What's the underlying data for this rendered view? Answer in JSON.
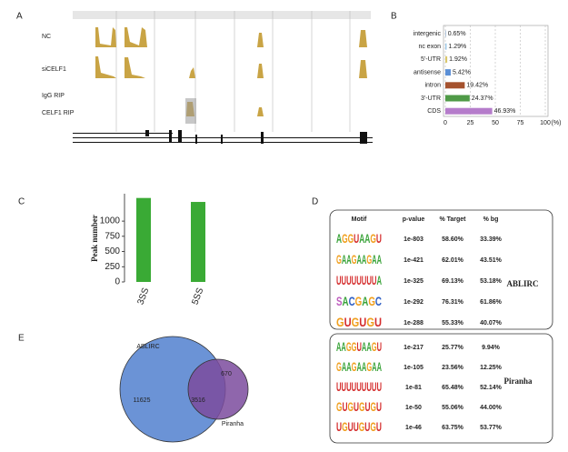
{
  "chart_data": [
    {
      "type": "bar",
      "panel": "B",
      "orientation": "horizontal",
      "categories": [
        "intergenic",
        "nc exon",
        "5'-UTR",
        "antisense",
        "intron",
        "3'-UTR",
        "CDS"
      ],
      "values": [
        0.65,
        1.29,
        1.92,
        5.42,
        19.42,
        24.37,
        46.93
      ],
      "value_labels": [
        "0.65%",
        "1.29%",
        "1.92%",
        "5.42%",
        "19.42%",
        "24.37%",
        "46.93%"
      ],
      "colors": [
        "#8fa9c8",
        "#9cc7e6",
        "#d9c66a",
        "#5b8fd6",
        "#a5522e",
        "#4f9a47",
        "#b57ccb"
      ],
      "xlim": [
        0,
        100
      ],
      "xticks": [
        0,
        25,
        50,
        75,
        100
      ],
      "xlabel": "(%)",
      "grid": true
    },
    {
      "type": "bar",
      "panel": "C",
      "categories": [
        "3SS",
        "5SS"
      ],
      "values": [
        1380,
        1315
      ],
      "color": "#3aaa35",
      "ylim": [
        0,
        1450
      ],
      "yticks": [
        0,
        250,
        500,
        750,
        1000
      ],
      "ylabel": "Peak number"
    },
    {
      "type": "venn",
      "panel": "E",
      "sets": [
        "ABLIRC",
        "Piranha"
      ],
      "values": [
        11625,
        3516,
        670
      ],
      "colors": [
        "#6b93d6",
        "#7b4b9e"
      ]
    }
  ],
  "track_panel": {
    "panel": "A",
    "tracks": [
      "NC",
      "siCELF1",
      "IgG RIP",
      "CELF1 RIP"
    ]
  },
  "motif_table": {
    "panel": "D",
    "header": [
      "Motif",
      "p-value",
      "% Target",
      "% bg"
    ],
    "groups": [
      {
        "name": "ABLIRC",
        "rows": [
          [
            "AGGUAAGU",
            "1e-803",
            "58.60%",
            "33.39%"
          ],
          [
            "GAAGAAGAA",
            "1e-421",
            "62.01%",
            "43.51%"
          ],
          [
            "UUUUUUUUA",
            "1e-325",
            "69.13%",
            "53.18%"
          ],
          [
            "SACGAGC",
            "1e-292",
            "76.31%",
            "61.86%"
          ],
          [
            "GUGUGU",
            "1e-288",
            "55.33%",
            "40.07%"
          ]
        ]
      },
      {
        "name": "Piranha",
        "rows": [
          [
            "AAGGUAAGU",
            "1e-217",
            "25.77%",
            "9.94%"
          ],
          [
            "GAAGAAGAA",
            "1e-105",
            "23.56%",
            "12.25%"
          ],
          [
            "UUUUUUUUU",
            "1e-81",
            "65.48%",
            "52.14%"
          ],
          [
            "GUGUGUGU",
            "1e-50",
            "55.06%",
            "44.00%"
          ],
          [
            "UGUUGUGU",
            "1e-46",
            "63.75%",
            "53.77%"
          ]
        ]
      }
    ]
  }
}
